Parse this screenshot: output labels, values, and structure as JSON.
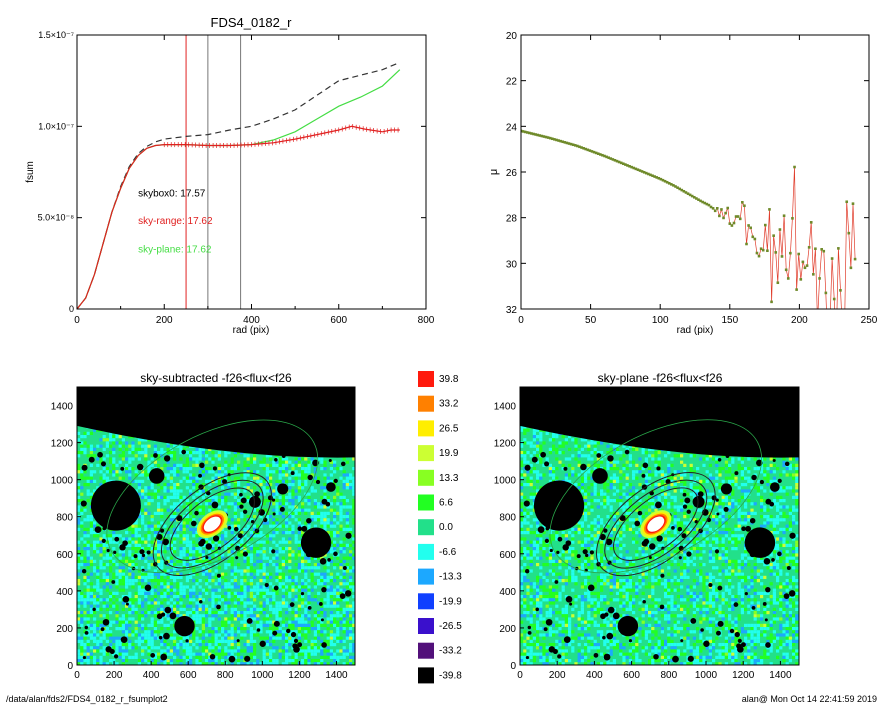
{
  "colors": {
    "total": "#333333",
    "sky_range": "#e02020",
    "sky_plane": "#44dd44",
    "mu_line": "#e03b2a",
    "mu_point": "#6f8a2a",
    "cursor_red": "#e02020",
    "cursor_gray": "#777777",
    "mask": "#000000",
    "noise_base": "#22e08a",
    "aperture": "#222222",
    "outer_ellipse": "#2aa84a"
  },
  "chart_data": [
    {
      "type": "line",
      "title": "FDS4_0182_r",
      "xlabel": "rad (pix)",
      "ylabel": "fsum",
      "xlim": [
        0,
        800
      ],
      "ylim": [
        0,
        1.5e-07
      ],
      "xticks": [
        {
          "v": 0,
          "label": "0"
        },
        {
          "v": 200,
          "label": "200"
        },
        {
          "v": 400,
          "label": "400"
        },
        {
          "v": 600,
          "label": "600"
        },
        {
          "v": 800,
          "label": "800"
        }
      ],
      "yticks": [
        {
          "v": 0,
          "label": "0"
        },
        {
          "v": 5e-08,
          "label": "5.0×10⁻⁸"
        },
        {
          "v": 1e-07,
          "label": "1.0×10⁻⁷"
        },
        {
          "v": 1.5e-07,
          "label": "1.5×10⁻⁷"
        }
      ],
      "vlines": [
        {
          "x": 250,
          "color": "#e02020"
        },
        {
          "x": 300,
          "color": "#777777"
        },
        {
          "x": 375,
          "color": "#777777"
        }
      ],
      "annotations": [
        {
          "text": "skybox0: 17.57",
          "color": "#000000",
          "x": 140,
          "y": 6.15e-08
        },
        {
          "text": "sky-range: 17.62",
          "color": "#e02020",
          "x": 140,
          "y": 4.65e-08
        },
        {
          "text": "sky-plane: 17.62",
          "color": "#44dd44",
          "x": 140,
          "y": 3.1e-08
        }
      ],
      "series": [
        {
          "key": "skybox0",
          "style": "dashed",
          "color": "#333333",
          "x": [
            0,
            20,
            40,
            60,
            80,
            100,
            120,
            140,
            160,
            180,
            200,
            250,
            300,
            350,
            400,
            450,
            500,
            550,
            600,
            650,
            700,
            740
          ],
          "y": [
            0,
            6e-09,
            1.9e-08,
            3.6e-08,
            5.3e-08,
            6.7e-08,
            7.8e-08,
            8.5e-08,
            8.9e-08,
            9.15e-08,
            9.3e-08,
            9.45e-08,
            9.55e-08,
            9.8e-08,
            1e-07,
            1.04e-07,
            1.09e-07,
            1.17e-07,
            1.25e-07,
            1.28e-07,
            1.31e-07,
            1.35e-07
          ]
        },
        {
          "key": "sky-plane",
          "style": "solid",
          "color": "#44dd44",
          "x": [
            0,
            20,
            40,
            60,
            80,
            100,
            120,
            140,
            160,
            180,
            200,
            250,
            300,
            350,
            400,
            450,
            500,
            550,
            600,
            650,
            700,
            740
          ],
          "y": [
            0,
            6e-09,
            1.9e-08,
            3.6e-08,
            5.3e-08,
            6.6e-08,
            7.7e-08,
            8.4e-08,
            8.8e-08,
            8.95e-08,
            9e-08,
            9e-08,
            8.95e-08,
            8.95e-08,
            9e-08,
            9.25e-08,
            9.7e-08,
            1.04e-07,
            1.11e-07,
            1.16e-07,
            1.22e-07,
            1.31e-07
          ]
        },
        {
          "key": "sky-range",
          "style": "solid",
          "color": "#e02020",
          "errorbars": true,
          "x": [
            0,
            20,
            40,
            60,
            80,
            100,
            120,
            140,
            160,
            180,
            200,
            250,
            300,
            350,
            400,
            450,
            500,
            550,
            600,
            630,
            660,
            700,
            720,
            740
          ],
          "y": [
            0,
            6e-09,
            1.9e-08,
            3.6e-08,
            5.3e-08,
            6.6e-08,
            7.7e-08,
            8.4e-08,
            8.8e-08,
            8.95e-08,
            9e-08,
            9e-08,
            8.95e-08,
            8.95e-08,
            9e-08,
            9.1e-08,
            9.3e-08,
            9.55e-08,
            9.8e-08,
            1e-07,
            9.85e-08,
            9.7e-08,
            9.8e-08,
            9.8e-08
          ]
        }
      ]
    },
    {
      "type": "scatter",
      "title": "",
      "xlabel": "rad (pix)",
      "ylabel": "μ",
      "xlim": [
        0,
        250
      ],
      "ylim": [
        32,
        20
      ],
      "xticks": [
        {
          "v": 0,
          "label": "0"
        },
        {
          "v": 50,
          "label": "50"
        },
        {
          "v": 100,
          "label": "100"
        },
        {
          "v": 150,
          "label": "150"
        },
        {
          "v": 200,
          "label": "200"
        },
        {
          "v": 250,
          "label": "250"
        }
      ],
      "yticks": [
        {
          "v": 20,
          "label": "20"
        },
        {
          "v": 22,
          "label": "22"
        },
        {
          "v": 24,
          "label": "24"
        },
        {
          "v": 26,
          "label": "26"
        },
        {
          "v": 28,
          "label": "28"
        },
        {
          "v": 30,
          "label": "30"
        },
        {
          "v": 32,
          "label": "32"
        }
      ],
      "profile": {
        "x": [
          0,
          20,
          40,
          60,
          80,
          100,
          110,
          120,
          130,
          140,
          150,
          160,
          170,
          180,
          190,
          200,
          210,
          220,
          230,
          240
        ],
        "y": [
          24.2,
          24.5,
          24.85,
          25.3,
          25.8,
          26.3,
          26.6,
          26.95,
          27.3,
          27.6,
          28.0,
          28.3,
          28.8,
          29.2,
          29.5,
          29.8,
          30.0,
          30.2,
          30.4,
          30.6
        ],
        "scatter_from": 135,
        "amp_per_pix": 0.05
      }
    },
    {
      "type": "heatmap",
      "title": "sky-subtracted -f26<flux<f26",
      "xlim": [
        0,
        1500
      ],
      "ylim": [
        0,
        1500
      ],
      "xticks": [
        {
          "v": 0,
          "label": "0"
        },
        {
          "v": 200,
          "label": "200"
        },
        {
          "v": 400,
          "label": "400"
        },
        {
          "v": 600,
          "label": "600"
        },
        {
          "v": 800,
          "label": "800"
        },
        {
          "v": 1000,
          "label": "1000"
        },
        {
          "v": 1200,
          "label": "1200"
        },
        {
          "v": 1400,
          "label": "1400"
        }
      ],
      "yticks": [
        {
          "v": 0,
          "label": "0"
        },
        {
          "v": 200,
          "label": "200"
        },
        {
          "v": 400,
          "label": "400"
        },
        {
          "v": 600,
          "label": "600"
        },
        {
          "v": 800,
          "label": "800"
        },
        {
          "v": 1000,
          "label": "1000"
        },
        {
          "v": 1200,
          "label": "1200"
        },
        {
          "v": 1400,
          "label": "1400"
        }
      ]
    },
    {
      "type": "heatmap",
      "title": "sky-plane -f26<flux<f26",
      "xlim": [
        0,
        1500
      ],
      "ylim": [
        0,
        1500
      ],
      "xticks": [
        {
          "v": 0,
          "label": "0"
        },
        {
          "v": 200,
          "label": "200"
        },
        {
          "v": 400,
          "label": "400"
        },
        {
          "v": 600,
          "label": "600"
        },
        {
          "v": 800,
          "label": "800"
        },
        {
          "v": 1000,
          "label": "1000"
        },
        {
          "v": 1200,
          "label": "1200"
        },
        {
          "v": 1400,
          "label": "1400"
        }
      ],
      "yticks": [
        {
          "v": 0,
          "label": "0"
        },
        {
          "v": 200,
          "label": "200"
        },
        {
          "v": 400,
          "label": "400"
        },
        {
          "v": 600,
          "label": "600"
        },
        {
          "v": 800,
          "label": "800"
        },
        {
          "v": 1000,
          "label": "1000"
        },
        {
          "v": 1200,
          "label": "1200"
        },
        {
          "v": 1400,
          "label": "1400"
        }
      ]
    }
  ],
  "colorbar": {
    "levels": [
      {
        "label": "39.8",
        "color": "#ff1a0d"
      },
      {
        "label": "33.2",
        "color": "#ff8000"
      },
      {
        "label": "26.5",
        "color": "#ffee00"
      },
      {
        "label": "19.9",
        "color": "#ccff33"
      },
      {
        "label": "13.3",
        "color": "#88ff22"
      },
      {
        "label": "6.6",
        "color": "#22ff22"
      },
      {
        "label": "0.0",
        "color": "#22e08a"
      },
      {
        "label": "-6.6",
        "color": "#22ffee"
      },
      {
        "label": "-13.3",
        "color": "#1ca8ff"
      },
      {
        "label": "-19.9",
        "color": "#1040ff"
      },
      {
        "label": "-26.5",
        "color": "#3a10cc"
      },
      {
        "label": "-33.2",
        "color": "#52107a"
      },
      {
        "label": "-39.8",
        "color": "#000000"
      }
    ]
  },
  "footer": {
    "left": "/data/alan/fds2/FDS4_0182_r_fsumplot2",
    "right": "alan@  Mon Oct 14 22:41:59 2019"
  }
}
